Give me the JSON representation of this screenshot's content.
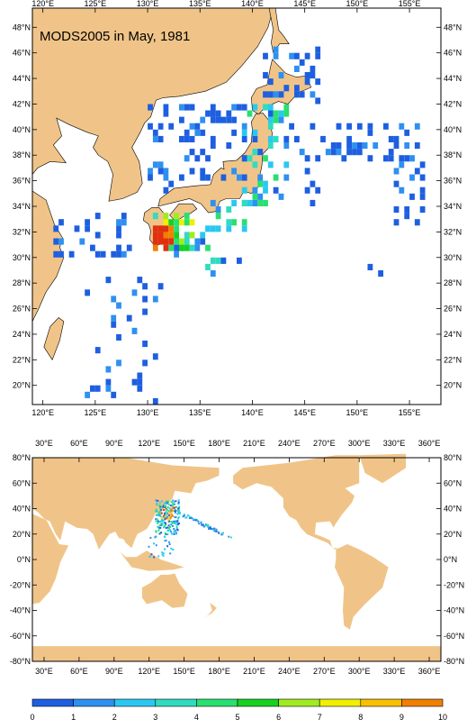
{
  "title": "MODS2005 in May, 1981",
  "top_map": {
    "x_ticks": [
      "120°E",
      "125°E",
      "130°E",
      "135°E",
      "140°E",
      "145°E",
      "150°E",
      "155°E"
    ],
    "y_ticks": [
      "20°N",
      "22°N",
      "24°N",
      "26°N",
      "28°N",
      "30°N",
      "32°N",
      "34°N",
      "36°N",
      "38°N",
      "40°N",
      "42°N",
      "44°N",
      "46°N",
      "48°N"
    ],
    "lon_range": [
      119,
      158
    ],
    "lat_range": [
      18.5,
      49.5
    ]
  },
  "bottom_map": {
    "x_ticks": [
      "30°E",
      "60°E",
      "90°E",
      "120°E",
      "150°E",
      "180°E",
      "210°E",
      "240°E",
      "270°E",
      "300°E",
      "330°E",
      "360°E"
    ],
    "y_ticks": [
      "80°N",
      "60°N",
      "40°N",
      "20°N",
      "0°N",
      "-20°N",
      "-40°N",
      "-60°N",
      "-80°N"
    ]
  },
  "colorbar": {
    "labels": [
      "0",
      "1",
      "2",
      "3",
      "4",
      "5",
      "6",
      "7",
      "8",
      "9",
      "10"
    ],
    "colors": [
      "#1e5fe0",
      "#2e90f0",
      "#2ac8f0",
      "#30dcc0",
      "#28e070",
      "#18d020",
      "#a0ec20",
      "#f0f000",
      "#f8c000",
      "#f08000",
      "#e03010"
    ]
  },
  "colors": {
    "land": "#f0c488",
    "ocean": "#ffffff"
  }
}
